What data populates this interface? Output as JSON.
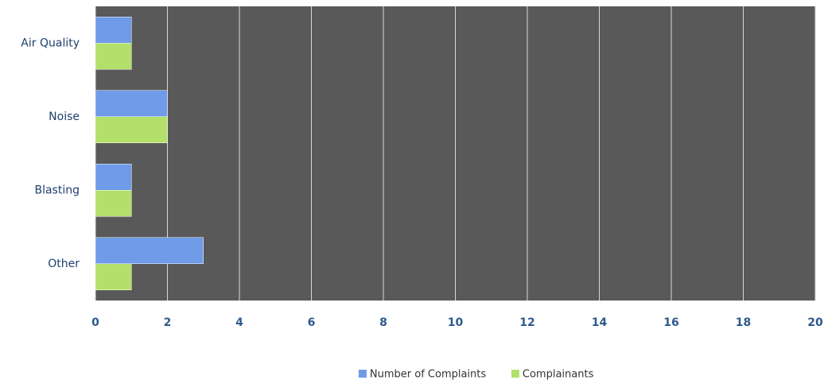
{
  "chart_data": {
    "type": "bar",
    "orientation": "horizontal",
    "categories": [
      "Air Quality",
      "Noise",
      "Blasting",
      "Other"
    ],
    "series": [
      {
        "name": "Number of Complaints",
        "color": "#6f9be8",
        "values": [
          1,
          2,
          1,
          3
        ]
      },
      {
        "name": "Complainants",
        "color": "#b3e06a",
        "values": [
          1,
          2,
          1,
          1
        ]
      }
    ],
    "xlim": [
      0,
      20
    ],
    "xticks": [
      0,
      2,
      4,
      6,
      8,
      10,
      12,
      14,
      16,
      18,
      20
    ],
    "grid": true,
    "legend": "bottom",
    "background": "#595959"
  }
}
